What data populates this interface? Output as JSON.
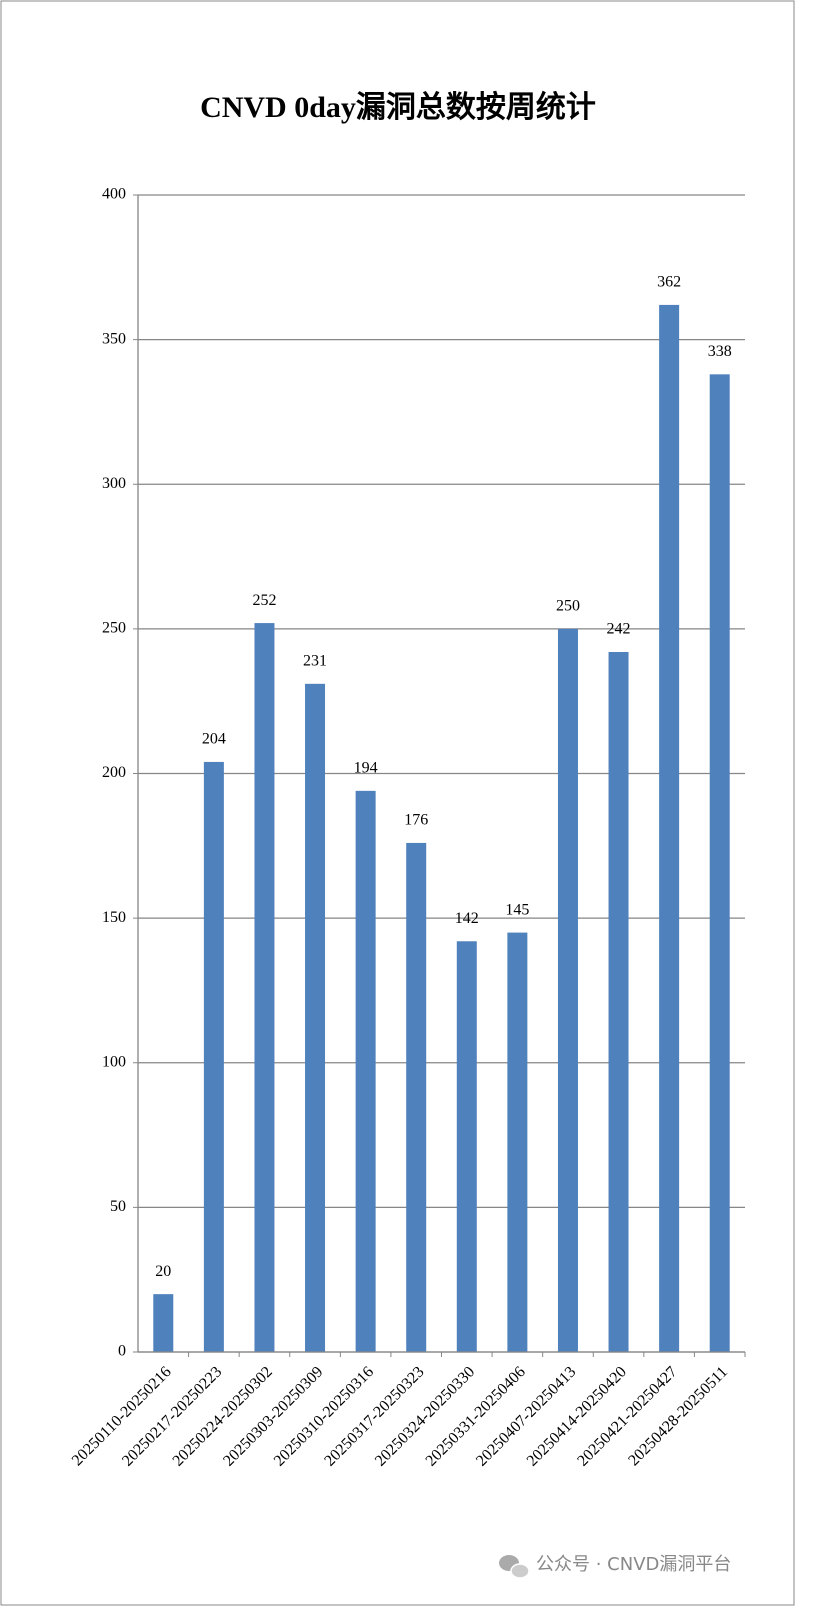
{
  "chart_data": {
    "type": "bar",
    "title": "CNVD 0day漏洞总数按周统计",
    "categories": [
      "20250110-20250216",
      "20250217-20250223",
      "20250224-20250302",
      "20250303-20250309",
      "20250310-20250316",
      "20250317-20250323",
      "20250324-20250330",
      "20250331-20250406",
      "20250407-20250413",
      "20250414-20250420",
      "20250421-20250427",
      "20250428-20250511"
    ],
    "values": [
      20,
      204,
      252,
      231,
      194,
      176,
      142,
      145,
      250,
      242,
      362,
      338
    ],
    "color": "#4f81bd",
    "ylim": [
      0,
      400
    ],
    "yticks": [
      0,
      50,
      100,
      150,
      200,
      250,
      300,
      350,
      400
    ],
    "grid": true,
    "watermark": "公众号 · CNVD漏洞平台"
  }
}
